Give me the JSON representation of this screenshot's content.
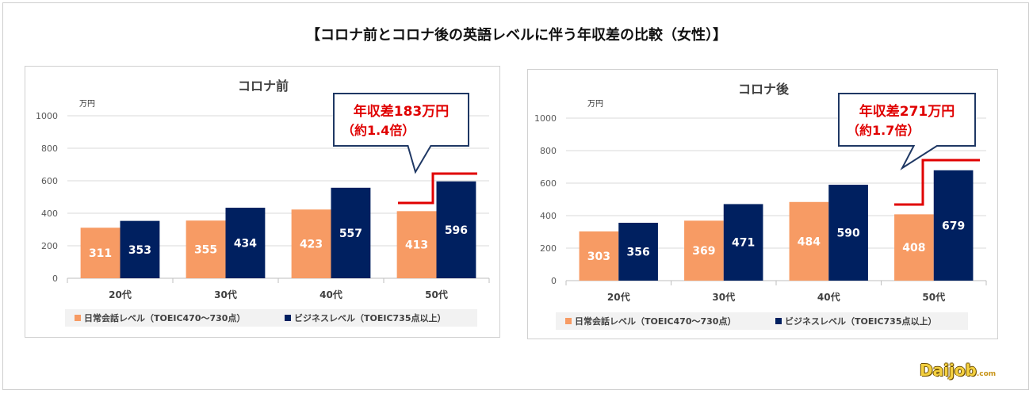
{
  "title": "【コロナ前とコロナ後の英語レベルに伴う年収差の比較（女性）】",
  "logo": {
    "main": "Daijob",
    "suffix": ".com"
  },
  "colors": {
    "daily": "#F79B64",
    "business": "#002060",
    "callout_text": "#E00000",
    "callout_border": "#1F3864",
    "bracket": "#E00000"
  },
  "chart_data": [
    {
      "type": "bar",
      "title": "コロナ前",
      "unit": "万円",
      "categories": [
        "20代",
        "30代",
        "40代",
        "50代"
      ],
      "ylim": [
        0,
        1000
      ],
      "yticks": [
        0,
        200,
        400,
        600,
        800,
        1000
      ],
      "series": [
        {
          "name": "日常会話レベル（TOEIC470〜730点）",
          "values": [
            311,
            355,
            423,
            413
          ]
        },
        {
          "name": "ビジネスレベル（TOEIC735点以上）",
          "values": [
            353,
            434,
            557,
            596
          ]
        }
      ],
      "annotation": {
        "line1": "年収差183万円",
        "line2": "（約1.4倍）"
      }
    },
    {
      "type": "bar",
      "title": "コロナ後",
      "unit": "万円",
      "categories": [
        "20代",
        "30代",
        "40代",
        "50代"
      ],
      "ylim": [
        0,
        1000
      ],
      "yticks": [
        0,
        200,
        400,
        600,
        800,
        1000
      ],
      "series": [
        {
          "name": "日常会話レベル（TOEIC470〜730点）",
          "values": [
            303,
            369,
            484,
            408
          ]
        },
        {
          "name": "ビジネスレベル（TOEIC735点以上）",
          "values": [
            356,
            471,
            590,
            679
          ]
        }
      ],
      "annotation": {
        "line1": "年収差271万円",
        "line2": "（約1.7倍）"
      }
    }
  ]
}
